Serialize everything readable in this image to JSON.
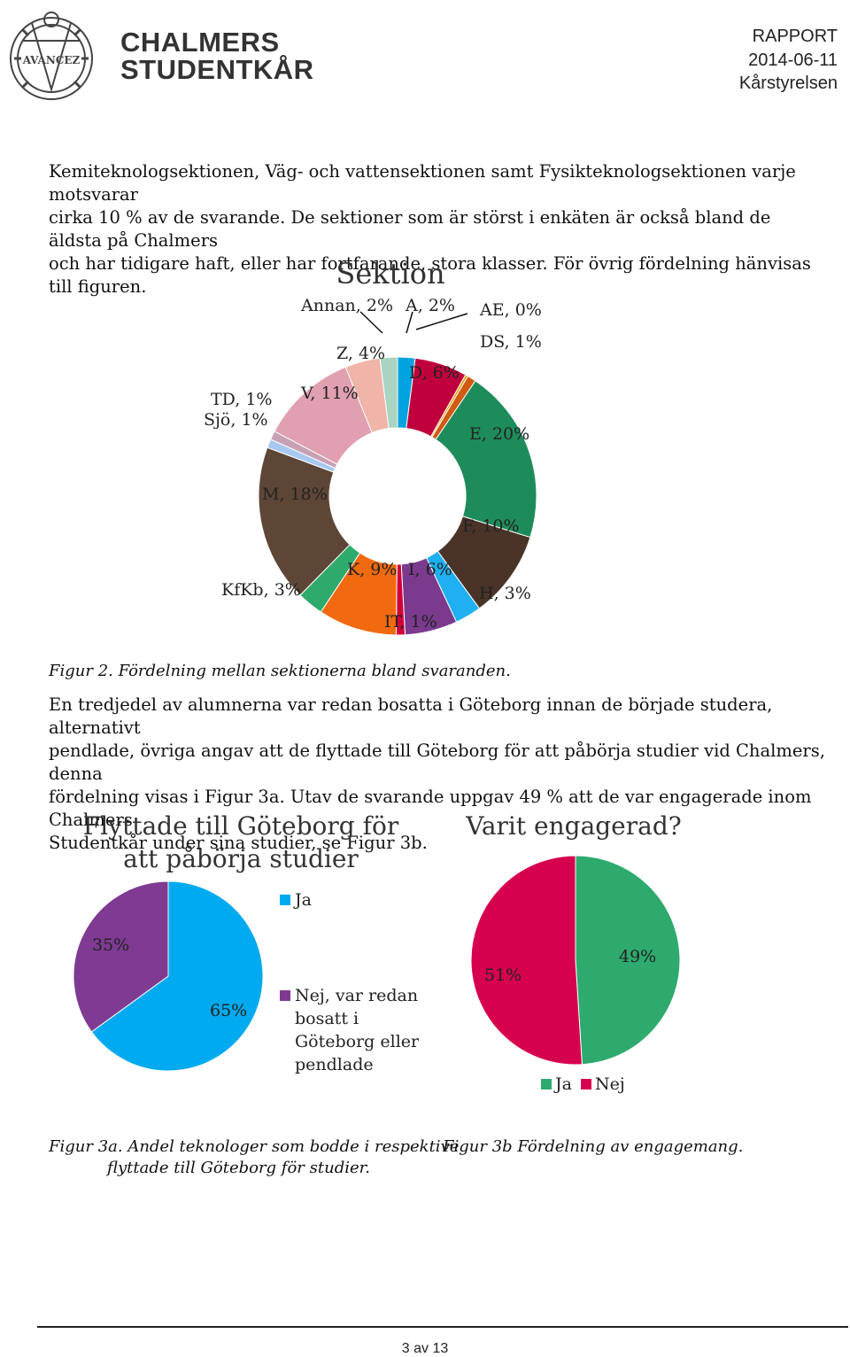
{
  "header": {
    "org_line1": "CHALMERS",
    "org_line2": "STUDENTKÅR",
    "logo_text": "AVANCEZ",
    "doc_type": "RAPPORT",
    "date": "2014-06-11",
    "author": "Kårstyrelsen"
  },
  "intro": {
    "lines": [
      "Kemiteknologsektionen, Väg- och vattensektionen samt Fysikteknologsektionen varje motsvarar",
      "cirka 10 % av de svarande. De sektioner som är störst i enkäten är också bland de äldsta på Chalmers",
      "och har tidigare haft, eller har fortfarande, stora klasser. För övrig fördelning hänvisas till figuren."
    ]
  },
  "figure2": {
    "caption": "Figur 2. Fördelning mellan sektionerna bland svaranden."
  },
  "middle": {
    "lines": [
      "En tredjedel av alumnerna var redan bosatta i Göteborg innan de började studera, alternativt",
      "pendlade, övriga angav att de flyttade till Göteborg för att påbörja studier vid Chalmers, denna",
      "fördelning visas i Figur 3a. Utav de svarande uppgav 49 % att de var engagerade inom Chalmers",
      "Studentkår under sina studier, se Figur 3b."
    ]
  },
  "figure3a": {
    "caption_line1": "Figur 3a. Andel teknologer som bodde i respektive",
    "caption_line2": "flyttade till Göteborg för studier."
  },
  "figure3b": {
    "caption": "Figur 3b Fördelning av engagemang."
  },
  "footer": {
    "page": "3 av 13"
  },
  "chart_data": [
    {
      "type": "donut",
      "title": "Sektion",
      "series": [
        {
          "label": "A",
          "value": 2,
          "value_label": "2%",
          "color": "#00a3e0"
        },
        {
          "label": "D",
          "value": 6,
          "value_label": "6%",
          "color": "#c0003c"
        },
        {
          "label": "AE",
          "value": 0,
          "value_label": "0%",
          "color": "#e8a000"
        },
        {
          "label": "DS",
          "value": 1,
          "value_label": "1%",
          "color": "#d05a10"
        },
        {
          "label": "E",
          "value": 20,
          "value_label": "20%",
          "color": "#1e8c5a"
        },
        {
          "label": "F",
          "value": 10,
          "value_label": "10%",
          "color": "#4a3428"
        },
        {
          "label": "H",
          "value": 3,
          "value_label": "3%",
          "color": "#1eb0f0"
        },
        {
          "label": "I",
          "value": 6,
          "value_label": "6%",
          "color": "#7b3a8e"
        },
        {
          "label": "IT",
          "value": 1,
          "value_label": "1%",
          "color": "#d0003a"
        },
        {
          "label": "K",
          "value": 9,
          "value_label": "9%",
          "color": "#f26a10"
        },
        {
          "label": "KfKb",
          "value": 3,
          "value_label": "3%",
          "color": "#2eaa6c"
        },
        {
          "label": "M",
          "value": 18,
          "value_label": "18%",
          "color": "#5e4636"
        },
        {
          "label": "Sjö",
          "value": 1,
          "value_label": "1%",
          "color": "#a8c8f0"
        },
        {
          "label": "TD",
          "value": 1,
          "value_label": "1%",
          "color": "#c8a0b4"
        },
        {
          "label": "V",
          "value": 11,
          "value_label": "11%",
          "color": "#e0a0b0"
        },
        {
          "label": "Z",
          "value": 4,
          "value_label": "4%",
          "color": "#f0b4a8"
        },
        {
          "label": "Annan",
          "value": 2,
          "value_label": "2%",
          "color": "#a8d4c0"
        }
      ]
    },
    {
      "type": "pie",
      "title_line1": "Flyttade till Göteborg för",
      "title_line2": "att påbörja studier",
      "series": [
        {
          "label": "Ja",
          "value": 65,
          "value_label": "65%",
          "color": "#00aaf0"
        },
        {
          "label": "Nej, var redan bosatt i Göteborg eller pendlade",
          "value": 35,
          "value_label": "35%",
          "color": "#7f3a92"
        }
      ],
      "legend": {
        "item1": "Ja",
        "item2_lines": [
          "Nej, var redan",
          "bosatt i",
          "Göteborg eller",
          "pendlade"
        ]
      }
    },
    {
      "type": "pie",
      "title": "Varit engagerad?",
      "series": [
        {
          "label": "Ja",
          "value": 49,
          "value_label": "49%",
          "color": "#2eaa6e"
        },
        {
          "label": "Nej",
          "value": 51,
          "value_label": "51%",
          "color": "#d6004e"
        }
      ],
      "legend": {
        "item1": "Ja",
        "item2": "Nej"
      }
    }
  ]
}
